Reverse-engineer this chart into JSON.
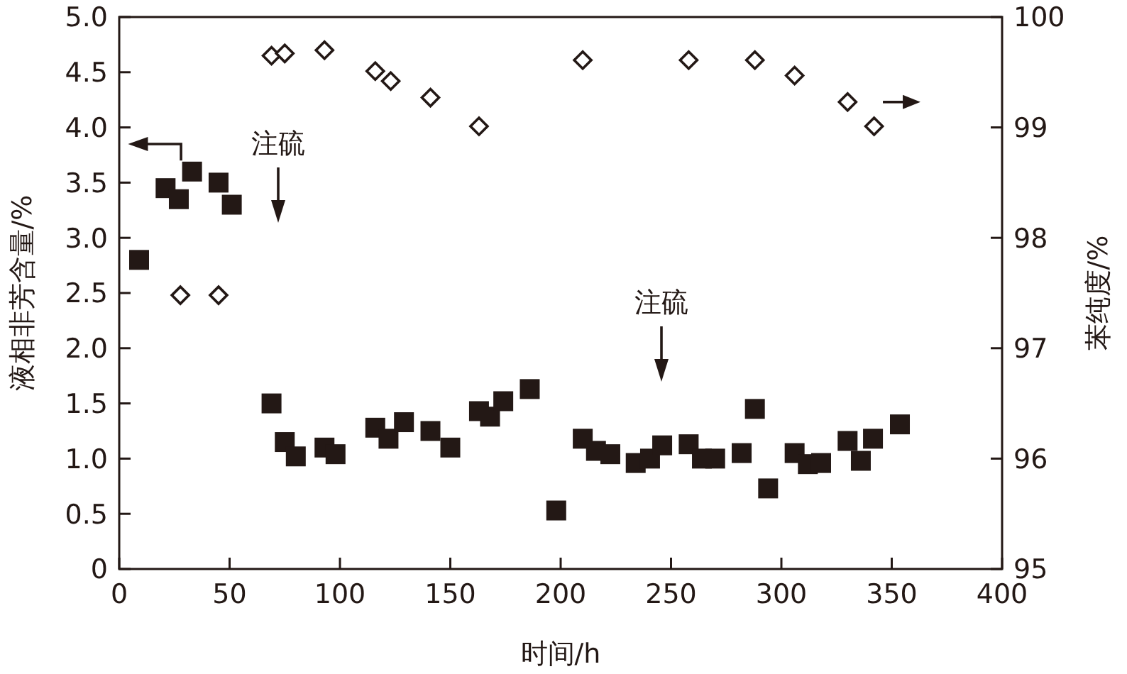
{
  "chart_data": {
    "type": "scatter",
    "xlabel": "时间/h",
    "ylabel": "液相非芳含量/%",
    "y2label": "苯纯度/%",
    "xlim": [
      0,
      400
    ],
    "xticks": [
      0,
      50,
      100,
      150,
      200,
      250,
      300,
      350,
      400
    ],
    "ylim": [
      0,
      5
    ],
    "yticks": [
      0,
      {
        "value": 0.5,
        "label": "0.5"
      },
      {
        "value": 1,
        "label": "1.0"
      },
      {
        "value": 1.5,
        "label": "1.5"
      },
      {
        "value": 2,
        "label": "2.0"
      },
      {
        "value": 2.5,
        "label": "2.5"
      },
      {
        "value": 3,
        "label": "3.0"
      },
      {
        "value": 3.5,
        "label": "3.5"
      },
      {
        "value": 4,
        "label": "4.0"
      },
      {
        "value": 4.5,
        "label": "4.5"
      },
      {
        "value": 5,
        "label": "5.0"
      }
    ],
    "y2lim": [
      95,
      100
    ],
    "y2ticks": [
      95,
      96,
      97,
      98,
      99,
      100
    ],
    "grid": false,
    "series": [
      {
        "color": "#231815",
        "marker": "square",
        "x": [
          9,
          21,
          27,
          33,
          45,
          51,
          69,
          75,
          80,
          93,
          98,
          116,
          122,
          129,
          141,
          150,
          163,
          168,
          174,
          186,
          198,
          210,
          216,
          222.5,
          234,
          240.5,
          246,
          258,
          264,
          270,
          282,
          288,
          294,
          306,
          312,
          318,
          330,
          336,
          341.5,
          353.7
        ],
        "values": [
          2.8,
          3.45,
          3.35,
          3.6,
          3.5,
          3.3,
          1.5,
          1.15,
          1.02,
          1.1,
          1.04,
          1.28,
          1.18,
          1.33,
          1.25,
          1.1,
          1.43,
          1.38,
          1.52,
          1.63,
          0.53,
          1.18,
          1.07,
          1.04,
          0.96,
          1.0,
          1.12,
          1.13,
          1.0,
          1.0,
          1.05,
          1.45,
          0.73,
          1.05,
          0.95,
          0.96,
          1.16,
          0.98,
          1.18,
          1.31
        ]
      },
      {
        "color": "#231815",
        "marker": "diamond",
        "axis": "y2",
        "x": [
          27.7,
          45,
          69,
          75,
          93,
          116,
          123,
          141,
          163,
          210,
          258,
          288,
          306,
          330,
          342
        ],
        "values": [
          97.48,
          97.48,
          99.65,
          99.67,
          99.7,
          99.51,
          99.42,
          99.27,
          99.01,
          99.61,
          99.61,
          99.61,
          99.47,
          99.23,
          99.01
        ]
      }
    ],
    "annotations": [
      "注硫",
      "注硫"
    ]
  }
}
